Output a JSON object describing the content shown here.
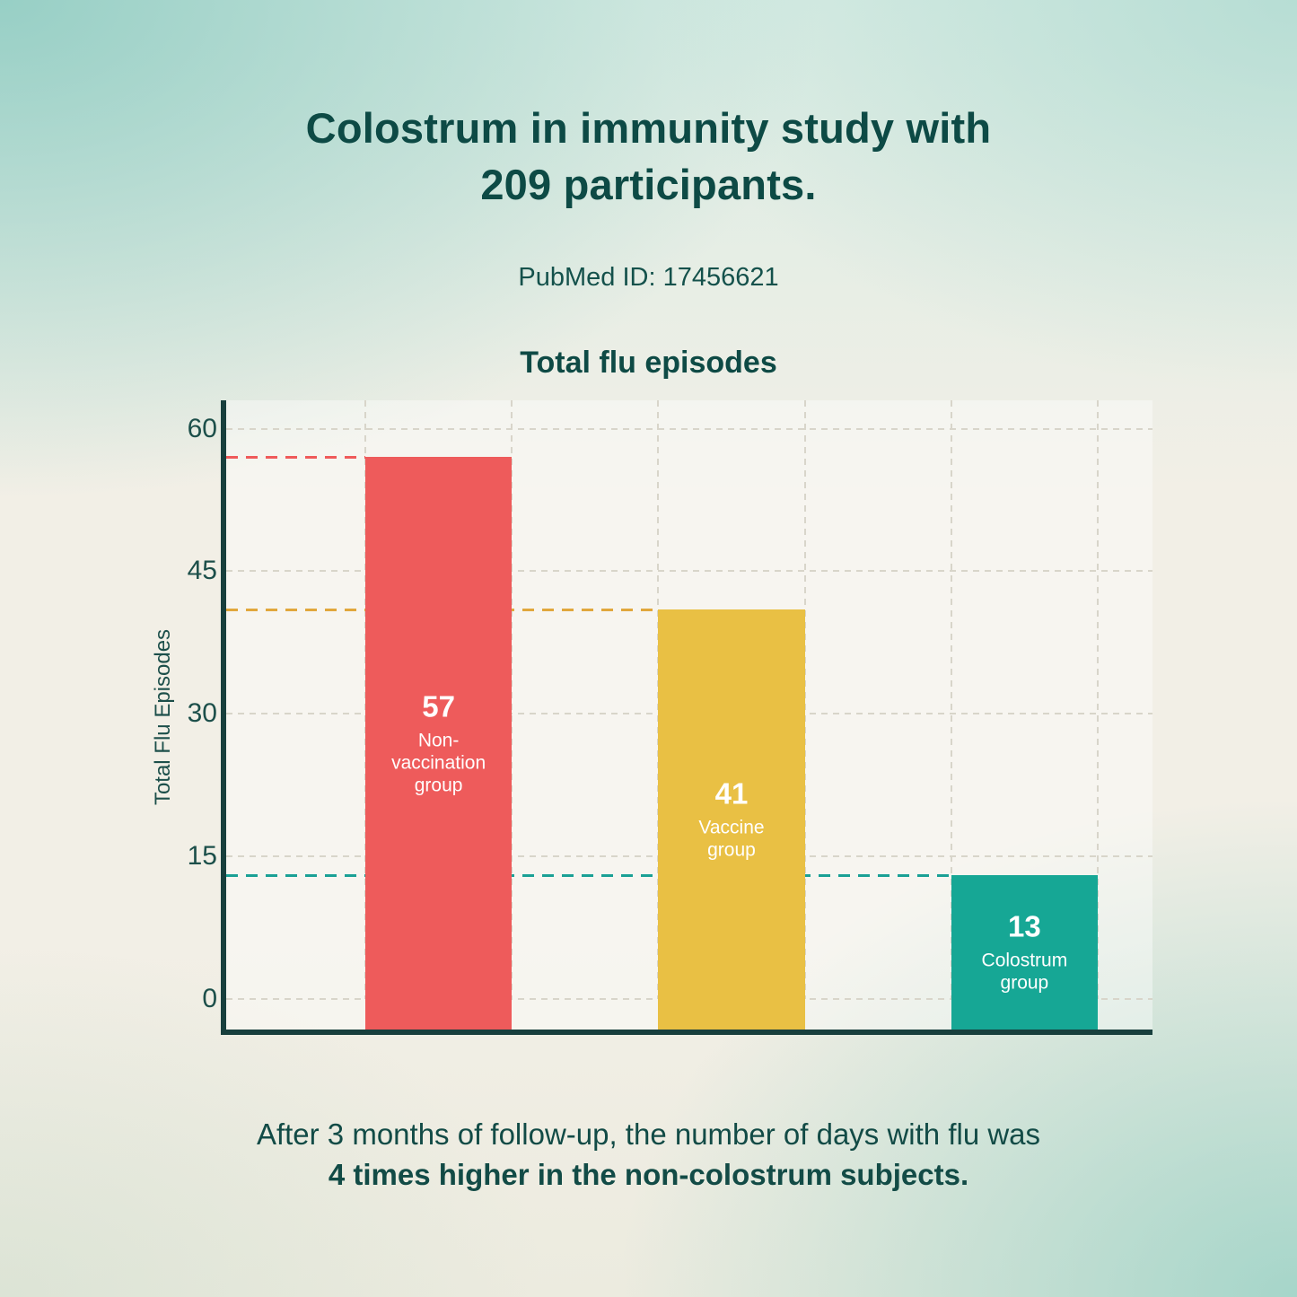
{
  "header": {
    "title_line1": "Colostrum in immunity study with",
    "title_line2": "209 participants.",
    "subtitle": "PubMed ID: 17456621"
  },
  "chart_data": {
    "type": "bar",
    "title": "Total flu episodes",
    "xlabel": "",
    "ylabel": "Total Flu Episodes",
    "ylim": [
      0,
      60
    ],
    "yticks": [
      0,
      15,
      30,
      45,
      60
    ],
    "grid": true,
    "legend": "none",
    "categories": [
      "Non-vaccination group",
      "Vaccine group",
      "Colostrum group"
    ],
    "values": [
      57,
      41,
      13
    ],
    "bars": [
      {
        "value": 57,
        "value_label": "57",
        "label": "Non-vaccination group",
        "label_lines": [
          "Non-",
          "vaccination",
          "group"
        ],
        "bar_color": "#ee5b5b",
        "dash_color": "#ef5a5a"
      },
      {
        "value": 41,
        "value_label": "41",
        "label": "Vaccine group",
        "label_lines": [
          "Vaccine",
          "group"
        ],
        "bar_color": "#e9c044",
        "dash_color": "#e1a73c"
      },
      {
        "value": 13,
        "value_label": "13",
        "label": "Colostrum group",
        "label_lines": [
          "Colostrum",
          "group"
        ],
        "bar_color": "#16a795",
        "dash_color": "#1aa095"
      }
    ]
  },
  "footer": {
    "caption_line1": "After 3 months of follow-up, the number of days with flu was",
    "caption_line2": "4 times higher in the non-colostrum subjects."
  },
  "colors": {
    "heading": "#0d4a45",
    "body_text": "#14514b",
    "axis": "#183f3d",
    "grid": "#d8d5ca",
    "bar_red": "#ee5b5b",
    "bar_yellow": "#e9c044",
    "bar_teal": "#16a795"
  }
}
